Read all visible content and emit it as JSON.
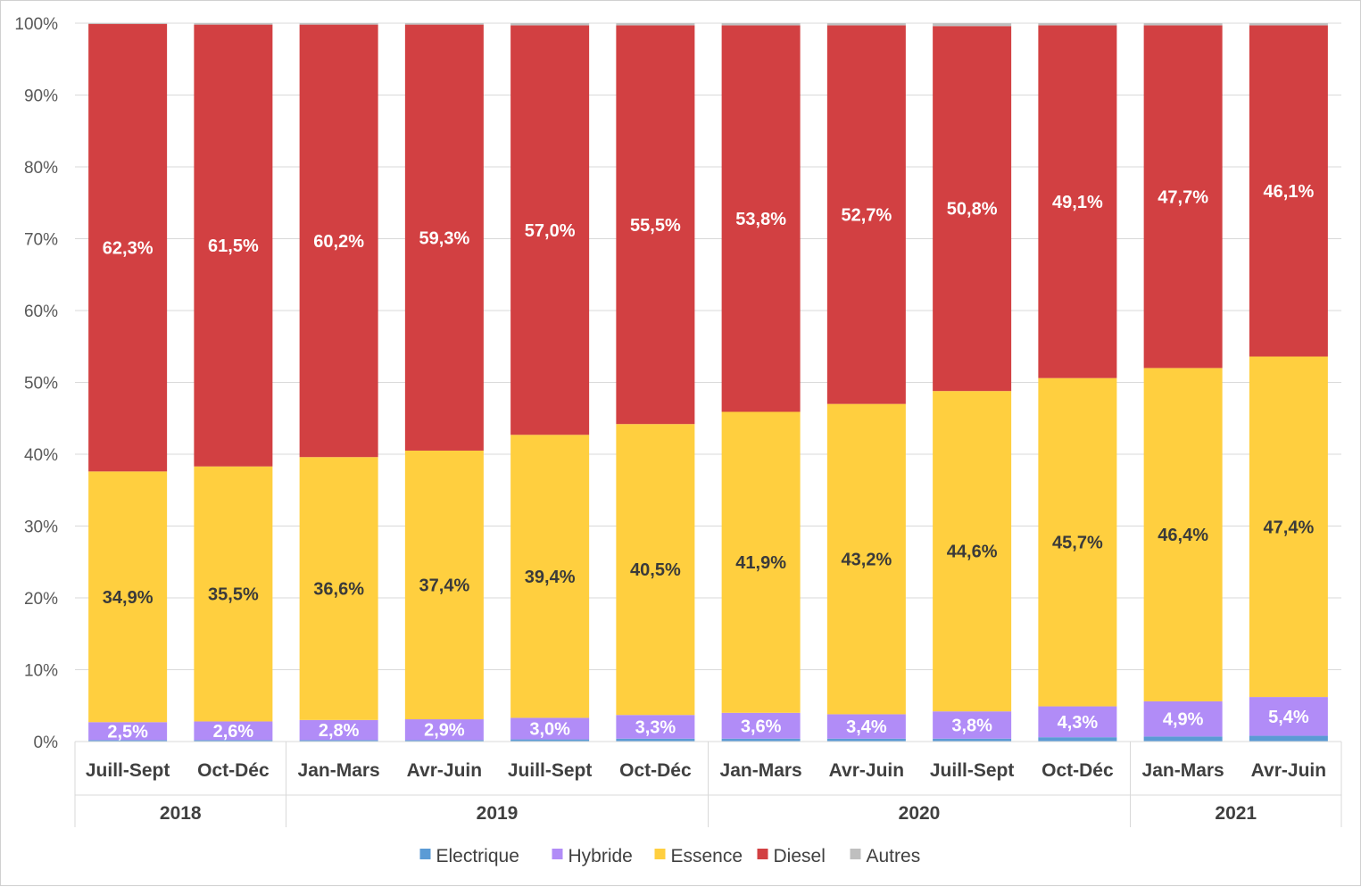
{
  "chart_data": {
    "type": "bar",
    "stacked": "percent",
    "title": "",
    "xlabel": "",
    "ylabel": "",
    "ylim": [
      0,
      100
    ],
    "y_ticks": [
      "0%",
      "10%",
      "20%",
      "30%",
      "40%",
      "50%",
      "60%",
      "70%",
      "80%",
      "90%",
      "100%"
    ],
    "grid": true,
    "legend_position": "bottom",
    "categories": [
      "Juill-Sept",
      "Oct-Déc",
      "Jan-Mars",
      "Avr-Juin",
      "Juill-Sept",
      "Oct-Déc",
      "Jan-Mars",
      "Avr-Juin",
      "Juill-Sept",
      "Oct-Déc",
      "Jan-Mars",
      "Avr-Juin"
    ],
    "year_groups": [
      {
        "label": "2018",
        "count": 2
      },
      {
        "label": "2019",
        "count": 4
      },
      {
        "label": "2020",
        "count": 4
      },
      {
        "label": "2021",
        "count": 2
      }
    ],
    "series": [
      {
        "name": "Electrique",
        "color": "#5b9bd5",
        "values": [
          0.2,
          0.2,
          0.2,
          0.2,
          0.3,
          0.4,
          0.4,
          0.4,
          0.4,
          0.6,
          0.7,
          0.8
        ],
        "labels": [
          "",
          "",
          "",
          "",
          "",
          "",
          "",
          "",
          "",
          "",
          "",
          ""
        ],
        "label_color": "#ffffff"
      },
      {
        "name": "Hybride",
        "color": "#b18cf7",
        "values": [
          2.5,
          2.6,
          2.8,
          2.9,
          3.0,
          3.3,
          3.6,
          3.4,
          3.8,
          4.3,
          4.9,
          5.4
        ],
        "labels": [
          "2,5%",
          "2,6%",
          "2,8%",
          "2,9%",
          "3,0%",
          "3,3%",
          "3,6%",
          "3,4%",
          "3,8%",
          "4,3%",
          "4,9%",
          "5,4%"
        ],
        "label_color": "#ffffff"
      },
      {
        "name": "Essence",
        "color": "#ffcf3f",
        "values": [
          34.9,
          35.5,
          36.6,
          37.4,
          39.4,
          40.5,
          41.9,
          43.2,
          44.6,
          45.7,
          46.4,
          47.4
        ],
        "labels": [
          "34,9%",
          "35,5%",
          "36,6%",
          "37,4%",
          "39,4%",
          "40,5%",
          "41,9%",
          "43,2%",
          "44,6%",
          "45,7%",
          "46,4%",
          "47,4%"
        ],
        "label_color": "#3a3a3a"
      },
      {
        "name": "Diesel",
        "color": "#d24042",
        "values": [
          62.3,
          61.5,
          60.2,
          59.3,
          57.0,
          55.5,
          53.8,
          52.7,
          50.8,
          49.1,
          47.7,
          46.1
        ],
        "labels": [
          "62,3%",
          "61,5%",
          "60,2%",
          "59,3%",
          "57,0%",
          "55,5%",
          "53,8%",
          "52,7%",
          "50,8%",
          "49,1%",
          "47,7%",
          "46,1%"
        ],
        "label_color": "#ffffff"
      },
      {
        "name": "Autres",
        "color": "#bfbfbf",
        "values": [
          0.1,
          0.2,
          0.2,
          0.2,
          0.3,
          0.3,
          0.3,
          0.3,
          0.4,
          0.3,
          0.3,
          0.3
        ],
        "labels": [
          "",
          "",
          "",
          "",
          "",
          "",
          "",
          "",
          "",
          "",
          "",
          ""
        ],
        "label_color": "#404040"
      }
    ]
  }
}
